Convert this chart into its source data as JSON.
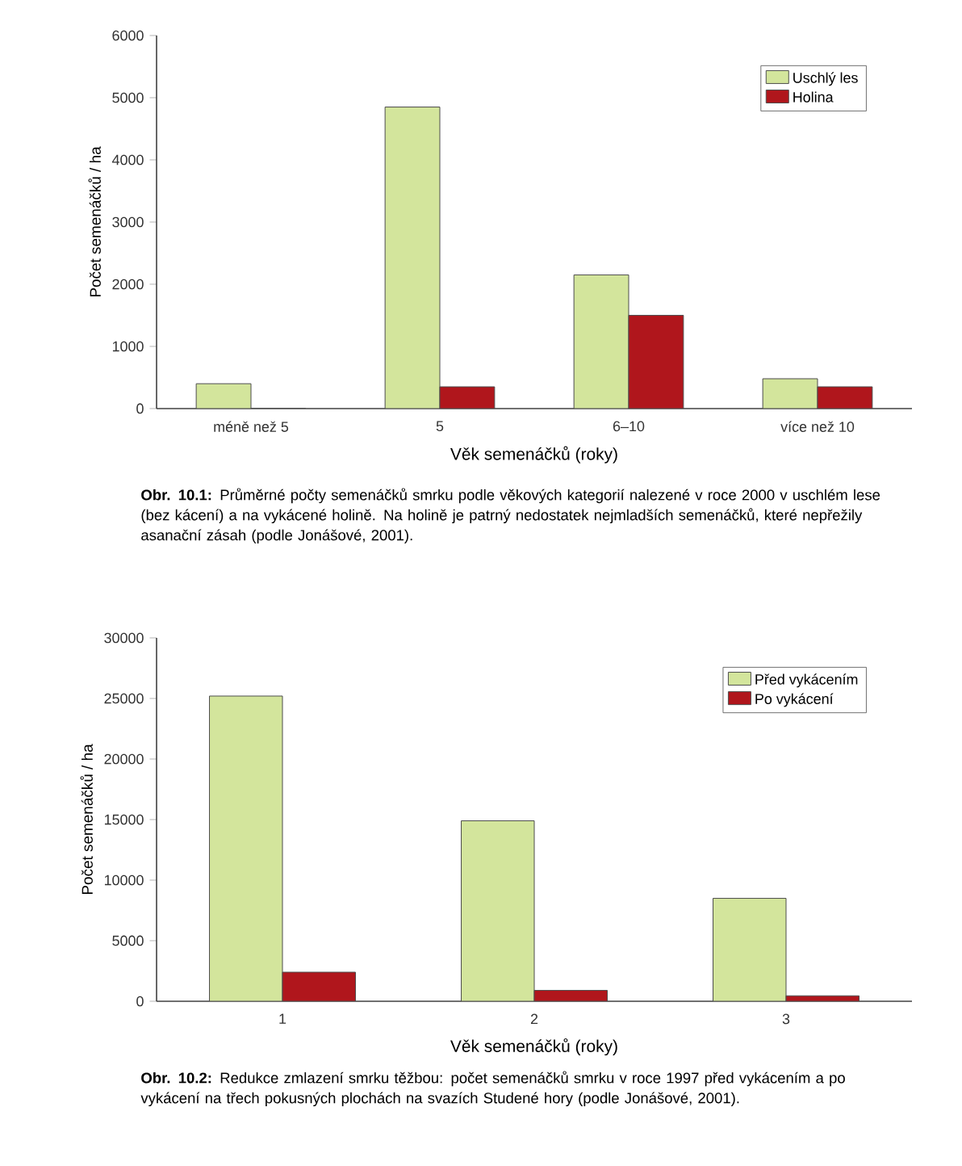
{
  "chart_data": [
    {
      "type": "bar",
      "categories": [
        "méně než 5",
        "5",
        "6–10",
        "více než 10"
      ],
      "series": [
        {
          "name": "Uschlý les",
          "color": "#d3e59c",
          "values": [
            400,
            4850,
            2150,
            480
          ]
        },
        {
          "name": "Holina",
          "color": "#b0161c",
          "values": [
            0,
            350,
            1500,
            350
          ]
        }
      ],
      "ylim": [
        0,
        6000
      ],
      "yticks": [
        0,
        1000,
        2000,
        3000,
        4000,
        5000,
        6000
      ],
      "xlabel": "Věk semenáčků (roky)",
      "ylabel": "Počet semenáčků / ha",
      "legend": "top right",
      "annotations": [
        "**Obr. 10.1:** Průměrné počty semenáčků smrku podle věkových kategorií nalezené v roce 2000 v uschlém lese (bez kácení) a na vykácené holině. Na holině je patrný nedostatek nejmladších semenáčků, které nepřežily asanační zásah (podle Jonášové, 2001)."
      ]
    },
    {
      "type": "bar",
      "categories": [
        "1",
        "2",
        "3"
      ],
      "series": [
        {
          "name": "Před vykácením",
          "color": "#d3e59c",
          "values": [
            25200,
            14900,
            8500
          ]
        },
        {
          "name": "Po vykácení",
          "color": "#b0161c",
          "values": [
            2400,
            900,
            450
          ]
        }
      ],
      "ylim": [
        0,
        30000
      ],
      "yticks": [
        0,
        5000,
        10000,
        15000,
        20000,
        25000,
        30000
      ],
      "xlabel": "Věk semenáčků (roky)",
      "ylabel": "Počet semenáčků / ha",
      "legend": "top right",
      "annotations": [
        "**Obr. 10.2:** Redukce zmlazení smrku těžbou: počet semenáčků smrku v roce 1997 před vykácením a po vykácení na třech pokusných plochách na svazích Studené hory (podle Jonášové, 2001)."
      ]
    }
  ]
}
